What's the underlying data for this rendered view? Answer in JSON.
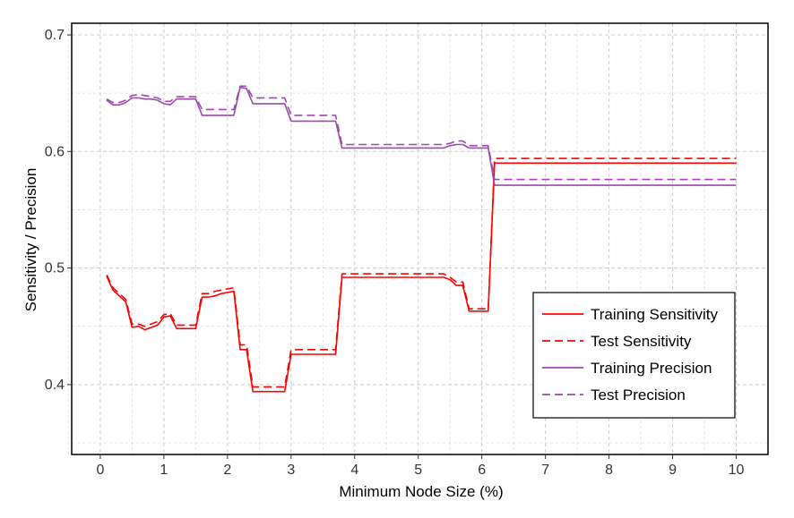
{
  "chart_data": {
    "type": "line",
    "title": "",
    "xlabel": "Minimum Node Size (%)",
    "ylabel": "Sensitivity / Precision",
    "xlim": [
      -0.45,
      10.5
    ],
    "ylim": [
      0.34,
      0.71
    ],
    "xticks": [
      0,
      1,
      2,
      3,
      4,
      5,
      6,
      7,
      8,
      9,
      10
    ],
    "yticks": [
      0.4,
      0.5,
      0.6,
      0.7
    ],
    "ytick_labels": [
      "0.4",
      "0.5",
      "0.6",
      "0.7"
    ],
    "grid": true,
    "legend_position": "bottom-right",
    "series": [
      {
        "name": "Training Sensitivity",
        "color": "#ff0000",
        "dash": "solid",
        "x": [
          0.1,
          0.2,
          0.3,
          0.4,
          0.5,
          0.6,
          0.7,
          0.8,
          0.9,
          1.0,
          1.1,
          1.2,
          1.3,
          1.4,
          1.5,
          1.6,
          1.7,
          1.8,
          1.9,
          2.0,
          2.1,
          2.2,
          2.3,
          2.4,
          2.5,
          2.6,
          2.7,
          2.8,
          2.9,
          3.0,
          3.5,
          3.7,
          3.8,
          4.0,
          5.0,
          5.4,
          5.5,
          5.6,
          5.7,
          5.8,
          5.9,
          6.0,
          6.1,
          6.2,
          6.3,
          7,
          8,
          9,
          10
        ],
        "y": [
          0.493,
          0.481,
          0.476,
          0.471,
          0.449,
          0.45,
          0.447,
          0.449,
          0.451,
          0.458,
          0.459,
          0.448,
          0.448,
          0.448,
          0.448,
          0.475,
          0.475,
          0.476,
          0.478,
          0.479,
          0.48,
          0.43,
          0.43,
          0.394,
          0.394,
          0.394,
          0.394,
          0.394,
          0.394,
          0.426,
          0.426,
          0.426,
          0.492,
          0.492,
          0.492,
          0.492,
          0.49,
          0.485,
          0.485,
          0.463,
          0.463,
          0.463,
          0.463,
          0.59,
          0.59,
          0.59,
          0.59,
          0.59,
          0.59
        ]
      },
      {
        "name": "Test Sensitivity",
        "color": "#ff0000",
        "dash": "dashed",
        "x": [
          0.1,
          0.2,
          0.3,
          0.4,
          0.5,
          0.6,
          0.7,
          0.8,
          0.9,
          1.0,
          1.1,
          1.2,
          1.3,
          1.4,
          1.5,
          1.6,
          1.7,
          1.8,
          1.9,
          2.0,
          2.1,
          2.2,
          2.3,
          2.4,
          2.5,
          2.6,
          2.7,
          2.8,
          2.9,
          3.0,
          3.5,
          3.7,
          3.8,
          4.0,
          5.0,
          5.4,
          5.5,
          5.6,
          5.7,
          5.8,
          5.9,
          6.0,
          6.1,
          6.2,
          6.3,
          7,
          8,
          9,
          10
        ],
        "y": [
          0.494,
          0.483,
          0.478,
          0.473,
          0.452,
          0.452,
          0.45,
          0.452,
          0.454,
          0.46,
          0.461,
          0.451,
          0.451,
          0.451,
          0.451,
          0.478,
          0.478,
          0.48,
          0.481,
          0.482,
          0.483,
          0.434,
          0.434,
          0.398,
          0.398,
          0.398,
          0.398,
          0.398,
          0.398,
          0.43,
          0.43,
          0.43,
          0.495,
          0.495,
          0.495,
          0.495,
          0.492,
          0.488,
          0.488,
          0.465,
          0.465,
          0.465,
          0.465,
          0.594,
          0.594,
          0.594,
          0.594,
          0.594,
          0.594
        ]
      },
      {
        "name": "Training Precision",
        "color": "#9e48b0",
        "dash": "solid",
        "x": [
          0.1,
          0.2,
          0.3,
          0.4,
          0.5,
          0.6,
          0.7,
          0.8,
          0.9,
          1.0,
          1.1,
          1.2,
          1.3,
          1.4,
          1.5,
          1.6,
          1.7,
          1.8,
          1.9,
          2.0,
          2.1,
          2.2,
          2.3,
          2.4,
          2.5,
          2.6,
          2.7,
          2.8,
          2.9,
          3.0,
          3.5,
          3.7,
          3.8,
          4.0,
          5.0,
          5.4,
          5.5,
          5.6,
          5.7,
          5.8,
          5.9,
          6.0,
          6.1,
          6.2,
          6.3,
          7,
          8,
          9,
          10
        ],
        "y": [
          0.644,
          0.64,
          0.64,
          0.642,
          0.646,
          0.646,
          0.645,
          0.645,
          0.644,
          0.641,
          0.64,
          0.645,
          0.645,
          0.645,
          0.645,
          0.631,
          0.631,
          0.631,
          0.631,
          0.631,
          0.631,
          0.655,
          0.654,
          0.641,
          0.641,
          0.641,
          0.641,
          0.641,
          0.641,
          0.626,
          0.626,
          0.626,
          0.603,
          0.603,
          0.603,
          0.603,
          0.605,
          0.606,
          0.606,
          0.603,
          0.603,
          0.603,
          0.603,
          0.571,
          0.571,
          0.571,
          0.571,
          0.571,
          0.571
        ]
      },
      {
        "name": "Test Precision",
        "color": "#9e48b0",
        "dash": "dashed",
        "x": [
          0.1,
          0.2,
          0.3,
          0.4,
          0.5,
          0.6,
          0.7,
          0.8,
          0.9,
          1.0,
          1.1,
          1.2,
          1.3,
          1.4,
          1.5,
          1.6,
          1.7,
          1.8,
          1.9,
          2.0,
          2.1,
          2.2,
          2.3,
          2.4,
          2.5,
          2.6,
          2.7,
          2.8,
          2.9,
          3.0,
          3.5,
          3.7,
          3.8,
          4.0,
          5.0,
          5.4,
          5.5,
          5.6,
          5.7,
          5.8,
          5.9,
          6.0,
          6.1,
          6.2,
          6.3,
          7,
          8,
          9,
          10
        ],
        "y": [
          0.645,
          0.642,
          0.642,
          0.644,
          0.648,
          0.649,
          0.648,
          0.647,
          0.646,
          0.643,
          0.643,
          0.647,
          0.647,
          0.647,
          0.647,
          0.636,
          0.636,
          0.636,
          0.636,
          0.636,
          0.636,
          0.656,
          0.656,
          0.646,
          0.646,
          0.646,
          0.646,
          0.646,
          0.646,
          0.631,
          0.631,
          0.631,
          0.606,
          0.606,
          0.606,
          0.606,
          0.607,
          0.609,
          0.609,
          0.605,
          0.605,
          0.605,
          0.605,
          0.576,
          0.576,
          0.576,
          0.576,
          0.576,
          0.576
        ]
      }
    ]
  }
}
